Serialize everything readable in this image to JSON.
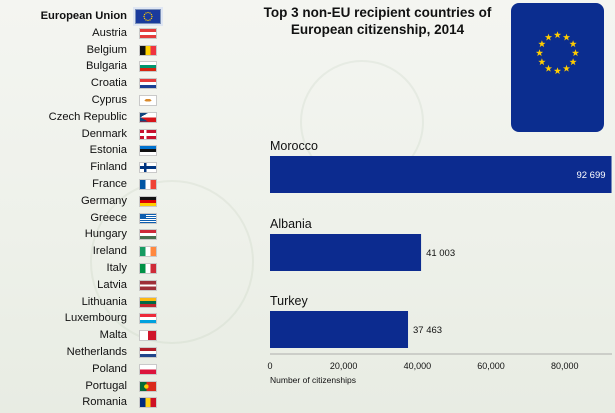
{
  "sidebar": {
    "items": [
      {
        "label": "European Union",
        "flag": "eu",
        "selected": true
      },
      {
        "label": "Austria",
        "flag": "austria"
      },
      {
        "label": "Belgium",
        "flag": "belgium"
      },
      {
        "label": "Bulgaria",
        "flag": "bulgaria"
      },
      {
        "label": "Croatia",
        "flag": "croatia"
      },
      {
        "label": "Cyprus",
        "flag": "cyprus"
      },
      {
        "label": "Czech Republic",
        "flag": "czech"
      },
      {
        "label": "Denmark",
        "flag": "denmark"
      },
      {
        "label": "Estonia",
        "flag": "estonia"
      },
      {
        "label": "Finland",
        "flag": "finland"
      },
      {
        "label": "France",
        "flag": "france"
      },
      {
        "label": "Germany",
        "flag": "germany"
      },
      {
        "label": "Greece",
        "flag": "greece"
      },
      {
        "label": "Hungary",
        "flag": "hungary"
      },
      {
        "label": "Ireland",
        "flag": "ireland"
      },
      {
        "label": "Italy",
        "flag": "italy"
      },
      {
        "label": "Latvia",
        "flag": "latvia"
      },
      {
        "label": "Lithuania",
        "flag": "lithuania"
      },
      {
        "label": "Luxembourg",
        "flag": "luxembourg"
      },
      {
        "label": "Malta",
        "flag": "malta"
      },
      {
        "label": "Netherlands",
        "flag": "netherlands"
      },
      {
        "label": "Poland",
        "flag": "poland"
      },
      {
        "label": "Portugal",
        "flag": "portugal"
      },
      {
        "label": "Romania",
        "flag": "romania"
      }
    ]
  },
  "colors": {
    "bar": "#0c2b8f",
    "passport": "#0b2d8f",
    "star": "#ffcc00"
  },
  "chart_data": {
    "type": "bar",
    "orientation": "horizontal",
    "title": "Top 3 non-EU recipient countries of European citizenship, 2014",
    "categories": [
      "Morocco",
      "Albania",
      "Turkey"
    ],
    "values": [
      92699,
      41003,
      37463
    ],
    "value_labels": [
      "92 699",
      "41 003",
      "37 463"
    ],
    "xlabel": "Number of citizenships",
    "xlim": [
      0,
      95000
    ],
    "ticks": [
      0,
      20000,
      40000,
      60000,
      80000
    ],
    "tick_labels": [
      "0",
      "20,000",
      "40,000",
      "60,000",
      "80,000"
    ],
    "grid": false
  }
}
